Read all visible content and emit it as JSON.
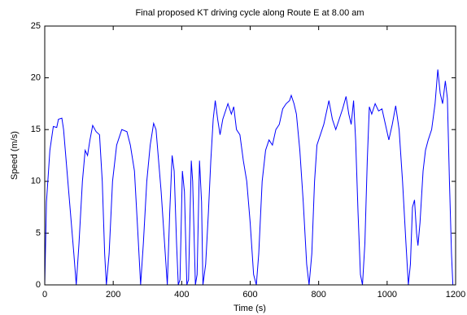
{
  "chart_data": {
    "type": "line",
    "title": "Final proposed KT driving cycle along Route E at 8.00 am",
    "x_label": "Time (s)",
    "y_label": "Speed (m/s)",
    "xlim": [
      0,
      1200
    ],
    "xticks": [
      0,
      200,
      400,
      600,
      800,
      1000,
      1200
    ],
    "ylim": [
      0,
      25
    ],
    "yticks": [
      0,
      5,
      10,
      15,
      20,
      25
    ],
    "grid": false,
    "series": [
      {
        "color": "#0000ff",
        "x": [
          0,
          5,
          15,
          25,
          35,
          40,
          50,
          55,
          65,
          75,
          85,
          92,
          100,
          110,
          118,
          125,
          132,
          140,
          150,
          160,
          168,
          175,
          180,
          188,
          198,
          210,
          225,
          240,
          250,
          262,
          272,
          280,
          288,
          298,
          308,
          318,
          325,
          330,
          340,
          350,
          358,
          365,
          372,
          378,
          385,
          390,
          395,
          402,
          408,
          415,
          420,
          428,
          432,
          440,
          445,
          452,
          458,
          462,
          470,
          478,
          485,
          492,
          498,
          505,
          512,
          520,
          535,
          545,
          552,
          560,
          570,
          580,
          590,
          600,
          610,
          618,
          625,
          635,
          645,
          655,
          665,
          675,
          685,
          695,
          705,
          715,
          720,
          728,
          735,
          745,
          755,
          765,
          772,
          780,
          788,
          795,
          805,
          815,
          830,
          840,
          850,
          860,
          870,
          880,
          888,
          895,
          902,
          908,
          915,
          922,
          928,
          935,
          942,
          948,
          955,
          965,
          975,
          985,
          995,
          1005,
          1015,
          1025,
          1035,
          1045,
          1055,
          1062,
          1068,
          1074,
          1080,
          1086,
          1090,
          1096,
          1105,
          1112,
          1120,
          1130,
          1140,
          1148,
          1155,
          1162,
          1170,
          1176,
          1182,
          1188,
          1192
        ],
        "values": [
          0,
          8,
          13,
          15.3,
          15.2,
          16,
          16.1,
          15,
          11,
          7,
          3,
          0,
          4,
          10,
          13,
          12.5,
          14,
          15.4,
          14.8,
          14.5,
          10,
          3,
          0,
          3,
          10,
          13.5,
          15,
          14.8,
          13.5,
          11,
          5,
          0,
          4,
          10,
          13.5,
          15.6,
          15,
          13,
          9,
          4,
          0,
          7,
          12.5,
          11,
          4,
          0,
          0.5,
          11,
          9,
          0,
          0.5,
          12,
          10,
          0,
          1,
          12,
          8,
          0,
          2,
          7,
          12,
          16,
          17.8,
          16,
          14.5,
          16,
          17.5,
          16.5,
          17.2,
          15,
          14.5,
          12,
          10,
          6,
          1,
          0,
          3,
          10,
          13,
          14,
          13.5,
          15,
          15.5,
          17,
          17.5,
          17.8,
          18.3,
          17.5,
          16.5,
          13,
          8,
          2,
          0,
          3,
          10,
          13.5,
          14.5,
          15.5,
          17.8,
          16,
          15,
          16,
          17,
          18.2,
          16.5,
          15.5,
          17.8,
          14,
          7,
          1,
          0,
          4,
          12,
          17.2,
          16.5,
          17.5,
          16.8,
          17,
          15.5,
          14,
          15.5,
          17.3,
          15,
          10,
          4,
          0,
          2,
          7.5,
          8.2,
          5,
          3.8,
          6,
          11,
          13,
          14,
          15,
          17.5,
          20.8,
          18.5,
          17.5,
          19.7,
          18,
          10,
          3,
          0
        ]
      }
    ]
  }
}
